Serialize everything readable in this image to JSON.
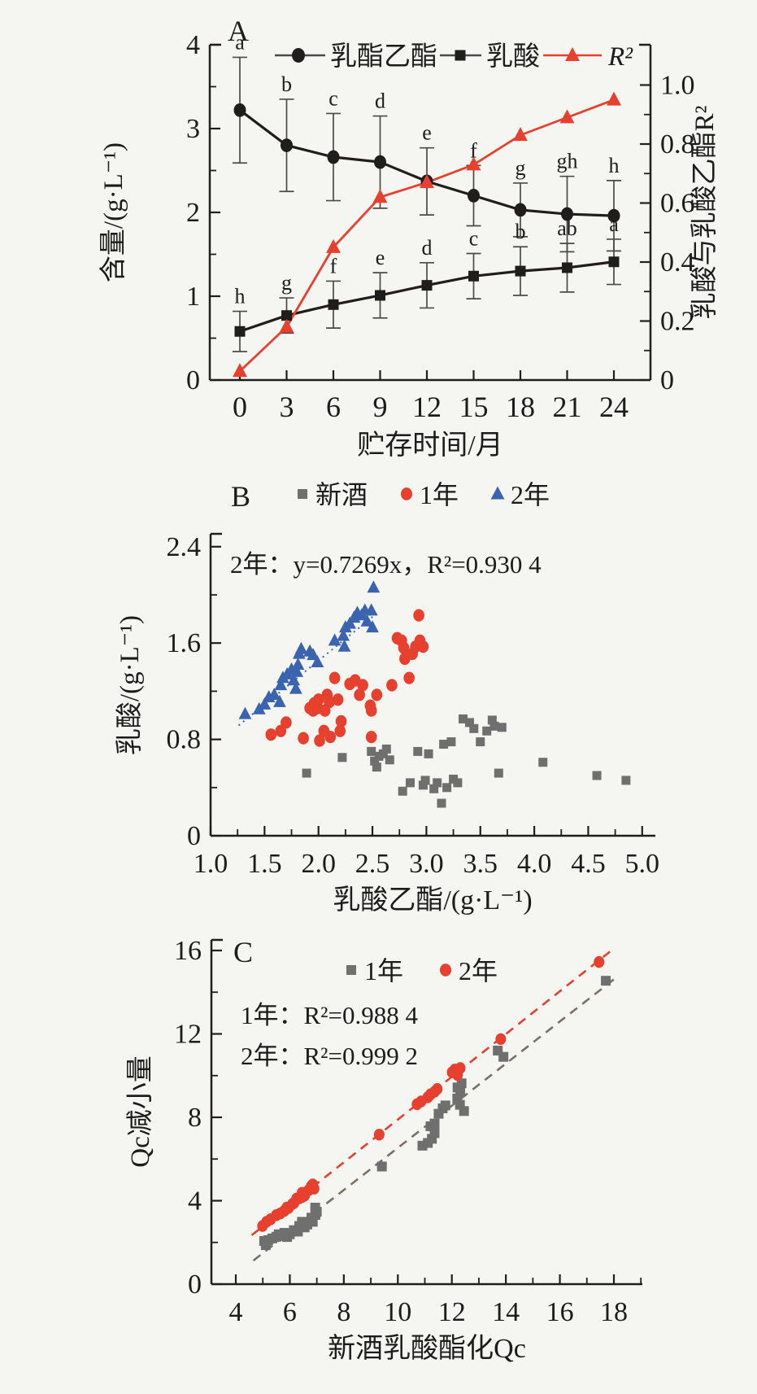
{
  "figure": {
    "colors": {
      "black": "#1f1e1c",
      "red": "#e8402f",
      "blue": "#3a63b0",
      "gray": "#6f6f6f",
      "gray_dash": "#7b6f68",
      "text": "#1c1c1c"
    }
  },
  "chart_data": [
    {
      "type": "line",
      "panel_label": "A",
      "xlabel": "贮存时间/月",
      "ylabel_left": "含量/(g·L⁻¹)",
      "ylabel_right": "乳酸与乳酸乙酯R²",
      "x_ticks": [
        0,
        3,
        6,
        9,
        12,
        15,
        18,
        21,
        24
      ],
      "x_tick_labels": [
        "0",
        "3",
        "6",
        "9",
        "12",
        "15",
        "18",
        "21",
        "24"
      ],
      "ylim_left": [
        0,
        4
      ],
      "y_left_ticks": [
        0,
        1,
        2,
        3,
        4
      ],
      "y_left_tick_labels": [
        "0",
        "1",
        "2",
        "3",
        "4"
      ],
      "y_left_minor": [
        0.5,
        1.5,
        2.5,
        3.5
      ],
      "ylim_right": [
        0,
        1.0
      ],
      "y_right_ticks": [
        0,
        0.2,
        0.4,
        0.6,
        0.8,
        1.0
      ],
      "y_right_tick_labels": [
        "0",
        "0.2",
        "0.4",
        "0.6",
        "0.8",
        "1.0"
      ],
      "y_right_minor": [
        0.1,
        0.3,
        0.5,
        0.7,
        0.9
      ],
      "categories": [
        0,
        3,
        6,
        9,
        12,
        15,
        18,
        21,
        24
      ],
      "series": [
        {
          "name": "乳酯乙酯",
          "marker": "circle",
          "axis": "left",
          "values": [
            3.22,
            2.8,
            2.66,
            2.6,
            2.37,
            2.2,
            2.03,
            1.98,
            1.96
          ],
          "errors": [
            0.63,
            0.55,
            0.52,
            0.55,
            0.4,
            0.36,
            0.32,
            0.45,
            0.42
          ],
          "letters": [
            "a",
            "b",
            "c",
            "d",
            "e",
            "f",
            "g",
            "gh",
            "h"
          ]
        },
        {
          "name": "乳酸",
          "marker": "square",
          "axis": "left",
          "values": [
            0.58,
            0.77,
            0.9,
            1.01,
            1.13,
            1.24,
            1.3,
            1.34,
            1.41
          ],
          "errors": [
            0.24,
            0.21,
            0.28,
            0.27,
            0.27,
            0.27,
            0.29,
            0.29,
            0.27
          ],
          "letters": [
            "h",
            "g",
            "f",
            "e",
            "d",
            "c",
            "b",
            "ab",
            "a"
          ]
        },
        {
          "name": "R²",
          "marker": "triangle",
          "axis": "right",
          "values": [
            0.03,
            0.18,
            0.45,
            0.62,
            0.67,
            0.73,
            0.83,
            0.89,
            0.95
          ],
          "errors": null,
          "letters": null
        }
      ]
    },
    {
      "type": "scatter",
      "panel_label": "B",
      "xlabel": "乳酸乙酯/(g·L⁻¹)",
      "ylabel": "乳酸/(g·L⁻¹)",
      "xlim": [
        1.0,
        5.1
      ],
      "x_ticks": [
        1.0,
        1.5,
        2.0,
        2.5,
        3.0,
        3.5,
        4.0,
        4.5,
        5.0
      ],
      "x_tick_labels": [
        "1.0",
        "1.5",
        "2.0",
        "2.5",
        "3.0",
        "3.5",
        "4.0",
        "4.5",
        "5.0"
      ],
      "x_minor": [
        1.25,
        1.75,
        2.25,
        2.75,
        3.25,
        3.75,
        4.25,
        4.75
      ],
      "ylim": [
        0,
        2.5
      ],
      "y_ticks": [
        0,
        0.8,
        1.6,
        2.4
      ],
      "y_tick_labels": [
        "0",
        "0.8",
        "1.6",
        "2.4"
      ],
      "y_minor": [
        0.4,
        1.2,
        2.0
      ],
      "annotation": "2年：y=0.7269x，R²=0.930 4",
      "series": [
        {
          "name": "新酒",
          "marker": "square",
          "color_key": "gray",
          "points": [
            [
              1.89,
              0.52
            ],
            [
              2.22,
              0.65
            ],
            [
              2.49,
              0.7
            ],
            [
              2.52,
              0.62
            ],
            [
              2.54,
              0.57
            ],
            [
              2.56,
              0.66
            ],
            [
              2.6,
              0.68
            ],
            [
              2.63,
              0.72
            ],
            [
              2.66,
              0.63
            ],
            [
              2.78,
              0.37
            ],
            [
              2.85,
              0.44
            ],
            [
              2.92,
              0.7
            ],
            [
              2.97,
              0.42
            ],
            [
              2.99,
              0.46
            ],
            [
              3.02,
              0.68
            ],
            [
              3.07,
              0.39
            ],
            [
              3.1,
              0.44
            ],
            [
              3.14,
              0.27
            ],
            [
              3.19,
              0.4
            ],
            [
              3.25,
              0.47
            ],
            [
              3.29,
              0.44
            ],
            [
              3.16,
              0.76
            ],
            [
              3.23,
              0.78
            ],
            [
              3.34,
              0.97
            ],
            [
              3.4,
              0.94
            ],
            [
              3.44,
              0.89
            ],
            [
              3.5,
              0.78
            ],
            [
              3.56,
              0.87
            ],
            [
              3.61,
              0.96
            ],
            [
              3.63,
              0.91
            ],
            [
              3.67,
              0.52
            ],
            [
              3.7,
              0.9
            ],
            [
              4.08,
              0.61
            ],
            [
              4.58,
              0.5
            ],
            [
              4.85,
              0.46
            ]
          ]
        },
        {
          "name": "1年",
          "marker": "circle",
          "color_key": "red",
          "points": [
            [
              1.56,
              0.84
            ],
            [
              1.65,
              0.87
            ],
            [
              1.7,
              0.94
            ],
            [
              1.86,
              0.81
            ],
            [
              1.92,
              1.06
            ],
            [
              1.95,
              1.04
            ],
            [
              1.96,
              1.1
            ],
            [
              1.99,
              1.06
            ],
            [
              2.0,
              1.13
            ],
            [
              2.01,
              0.79
            ],
            [
              2.05,
              0.87
            ],
            [
              2.06,
              1.04
            ],
            [
              2.08,
              1.17
            ],
            [
              2.1,
              1.11
            ],
            [
              2.11,
              0.82
            ],
            [
              2.15,
              1.31
            ],
            [
              2.18,
              1.13
            ],
            [
              2.2,
              0.87
            ],
            [
              2.21,
              0.95
            ],
            [
              2.29,
              1.26
            ],
            [
              2.34,
              1.29
            ],
            [
              2.38,
              1.17
            ],
            [
              2.41,
              1.25
            ],
            [
              2.48,
              1.08
            ],
            [
              2.49,
              1.04
            ],
            [
              2.49,
              0.82
            ],
            [
              2.54,
              1.17
            ],
            [
              2.68,
              1.25
            ],
            [
              2.73,
              1.64
            ],
            [
              2.77,
              1.62
            ],
            [
              2.79,
              1.56
            ],
            [
              2.8,
              1.47
            ],
            [
              2.84,
              1.31
            ],
            [
              2.87,
              1.51
            ],
            [
              2.9,
              1.57
            ],
            [
              2.93,
              1.83
            ],
            [
              2.94,
              1.62
            ],
            [
              2.97,
              1.57
            ]
          ]
        },
        {
          "name": "2年",
          "marker": "triangle",
          "color_key": "blue",
          "points": [
            [
              1.32,
              1.01
            ],
            [
              1.45,
              1.05
            ],
            [
              1.5,
              1.09
            ],
            [
              1.54,
              1.15
            ],
            [
              1.59,
              1.17
            ],
            [
              1.64,
              1.11
            ],
            [
              1.65,
              1.25
            ],
            [
              1.67,
              1.31
            ],
            [
              1.71,
              1.34
            ],
            [
              1.75,
              1.38
            ],
            [
              1.77,
              1.29
            ],
            [
              1.79,
              1.22
            ],
            [
              1.8,
              1.36
            ],
            [
              1.81,
              1.42
            ],
            [
              1.82,
              1.51
            ],
            [
              1.84,
              1.55
            ],
            [
              1.92,
              1.53
            ],
            [
              1.95,
              1.5
            ],
            [
              1.99,
              1.44
            ],
            [
              2.15,
              1.62
            ],
            [
              2.23,
              1.66
            ],
            [
              2.24,
              1.57
            ],
            [
              2.25,
              1.73
            ],
            [
              2.29,
              1.76
            ],
            [
              2.33,
              1.81
            ],
            [
              2.36,
              1.85
            ],
            [
              2.4,
              1.83
            ],
            [
              2.43,
              1.87
            ],
            [
              2.45,
              1.78
            ],
            [
              2.49,
              1.87
            ],
            [
              2.5,
              1.73
            ],
            [
              2.51,
              2.06
            ]
          ],
          "trend": {
            "style": "dotted",
            "slope": 0.7269,
            "intercept": 0,
            "x_from": 1.26,
            "x_to": 2.54
          }
        }
      ]
    },
    {
      "type": "scatter",
      "panel_label": "C",
      "xlabel": "新酒乳酸酯化Qc",
      "ylabel": "Qc减小量",
      "xlim": [
        3.1,
        19.1
      ],
      "x_ticks": [
        4,
        6,
        8,
        10,
        12,
        14,
        16,
        18
      ],
      "x_tick_labels": [
        "4",
        "6",
        "8",
        "10",
        "12",
        "14",
        "16",
        "18"
      ],
      "x_minor": [
        5,
        7,
        9,
        11,
        13,
        15,
        17,
        19
      ],
      "ylim": [
        0,
        16.5
      ],
      "y_ticks": [
        0,
        4,
        8,
        12,
        16
      ],
      "y_tick_labels": [
        "0",
        "4",
        "8",
        "12",
        "16"
      ],
      "y_minor": [
        2,
        6,
        10,
        14
      ],
      "annotations": [
        "1年：R²=0.988 4",
        "2年：R²=0.999 2"
      ],
      "series": [
        {
          "name": "1年",
          "marker": "square",
          "color_key": "gray",
          "trend_style": "dashed",
          "trend_color_key": "gray_dash",
          "points": [
            [
              5.05,
              2.07
            ],
            [
              5.11,
              1.87
            ],
            [
              5.2,
              2.11
            ],
            [
              5.35,
              2.19
            ],
            [
              5.5,
              2.27
            ],
            [
              5.59,
              2.39
            ],
            [
              5.71,
              2.31
            ],
            [
              5.8,
              2.46
            ],
            [
              5.9,
              2.26
            ],
            [
              6.0,
              2.39
            ],
            [
              6.15,
              2.59
            ],
            [
              6.3,
              2.52
            ],
            [
              6.35,
              2.79
            ],
            [
              6.45,
              2.99
            ],
            [
              6.55,
              2.72
            ],
            [
              6.65,
              2.86
            ],
            [
              6.8,
              3.19
            ],
            [
              6.85,
              2.99
            ],
            [
              6.95,
              3.32
            ],
            [
              7.0,
              3.47
            ],
            [
              6.94,
              3.67
            ],
            [
              9.41,
              5.64
            ],
            [
              10.91,
              6.64
            ],
            [
              11.11,
              6.77
            ],
            [
              11.26,
              6.97
            ],
            [
              11.36,
              7.24
            ],
            [
              11.21,
              7.57
            ],
            [
              11.36,
              7.7
            ],
            [
              11.51,
              8.17
            ],
            [
              11.66,
              8.43
            ],
            [
              11.76,
              8.57
            ],
            [
              12.2,
              8.9
            ],
            [
              12.3,
              8.6
            ],
            [
              12.45,
              8.3
            ],
            [
              12.21,
              9.43
            ],
            [
              12.31,
              9.23
            ],
            [
              12.36,
              9.63
            ],
            [
              13.7,
              11.2
            ],
            [
              13.91,
              10.9
            ],
            [
              17.7,
              14.55
            ]
          ]
        },
        {
          "name": "2年",
          "marker": "circle",
          "color_key": "red",
          "trend_style": "dashed",
          "trend_color_key": "red",
          "points": [
            [
              4.99,
              2.79
            ],
            [
              5.14,
              2.99
            ],
            [
              5.29,
              3.11
            ],
            [
              5.5,
              3.31
            ],
            [
              5.65,
              3.39
            ],
            [
              5.8,
              3.52
            ],
            [
              5.89,
              3.67
            ],
            [
              5.95,
              3.65
            ],
            [
              6.1,
              3.85
            ],
            [
              6.16,
              3.9
            ],
            [
              6.25,
              4.1
            ],
            [
              6.35,
              4.12
            ],
            [
              6.46,
              4.18
            ],
            [
              6.45,
              4.38
            ],
            [
              6.55,
              4.25
            ],
            [
              6.7,
              4.51
            ],
            [
              6.8,
              4.71
            ],
            [
              6.9,
              4.58
            ],
            [
              6.85,
              4.78
            ],
            [
              9.31,
              7.17
            ],
            [
              10.71,
              8.63
            ],
            [
              10.86,
              8.76
            ],
            [
              11.11,
              8.96
            ],
            [
              11.21,
              9.1
            ],
            [
              11.36,
              9.23
            ],
            [
              11.46,
              9.36
            ],
            [
              12.01,
              10.16
            ],
            [
              12.11,
              10.29
            ],
            [
              12.21,
              10.03
            ],
            [
              12.31,
              10.36
            ],
            [
              13.81,
              11.75
            ],
            [
              17.45,
              15.45
            ]
          ]
        }
      ]
    }
  ]
}
